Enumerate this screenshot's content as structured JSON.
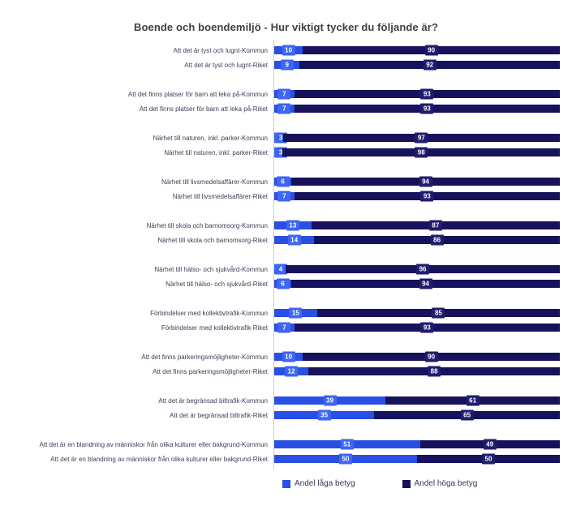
{
  "title": "Boende och boendemiljö - Hur viktigt tycker du följande är?",
  "legend": [
    {
      "label": "Andel låga betyg",
      "color": "#2a4fe4"
    },
    {
      "label": "Andel höga betyg",
      "color": "#16125c"
    }
  ],
  "chart_data": {
    "type": "bar",
    "orientation": "horizontal",
    "stacked": true,
    "title": "Boende och boendemiljö - Hur viktigt tycker du följande är?",
    "xlabel": "",
    "ylabel": "",
    "xlim": [
      0,
      100
    ],
    "grid": false,
    "legend_position": "bottom",
    "value_unit": "percent",
    "categories": [
      "Att det är tyst och lugnt-Kommun",
      "Att det är tyst och lugnt-Riket",
      "Att det finns platser för barn att leka på-Kommun",
      "Att det finns platser för barn att leka på-Riket",
      "Närhet till naturen, inkl. parker-Kommun",
      "Närhet till naturen, inkl. parker-Riket",
      "Närhet till livsmedelsaffärer-Kommun",
      "Närhet till livsmedelsaffärer-Riket",
      "Närhet till skola och barnomsorg-Kommun",
      "Närhet till skola och barnomsorg-Riket",
      "Närhet till hälso- och sjukvård-Kommun",
      "Närhet till hälso- och sjukvård-Riket",
      "Förbindelser med kollektivtrafik-Kommun",
      "Förbindelser med kollektivtrafik-Riket",
      "Att det finns parkeringsmöjligheter-Kommun",
      "Att det finns parkeringsmöjligheter-Riket",
      "Att det är begränsad biltrafik-Kommun",
      "Att det är begränsad biltrafik-Riket",
      "Att det är en blandning av människor från olika kulturer eller bakgrund-Kommun",
      "Att det är en blandning av människor från olika kulturer eller bakgrund-Riket"
    ],
    "series": [
      {
        "name": "Andel låga betyg",
        "color": "#2a4fe4",
        "badge_color": "#3e66f3",
        "values": [
          10,
          9,
          7,
          7,
          3,
          3,
          6,
          7,
          13,
          14,
          4,
          6,
          15,
          7,
          10,
          12,
          39,
          35,
          51,
          50
        ]
      },
      {
        "name": "Andel höga betyg",
        "color": "#16125c",
        "badge_color": "#201c6e",
        "values": [
          90,
          92,
          93,
          93,
          97,
          98,
          94,
          93,
          87,
          86,
          96,
          94,
          85,
          93,
          90,
          88,
          61,
          65,
          49,
          50
        ]
      }
    ]
  }
}
